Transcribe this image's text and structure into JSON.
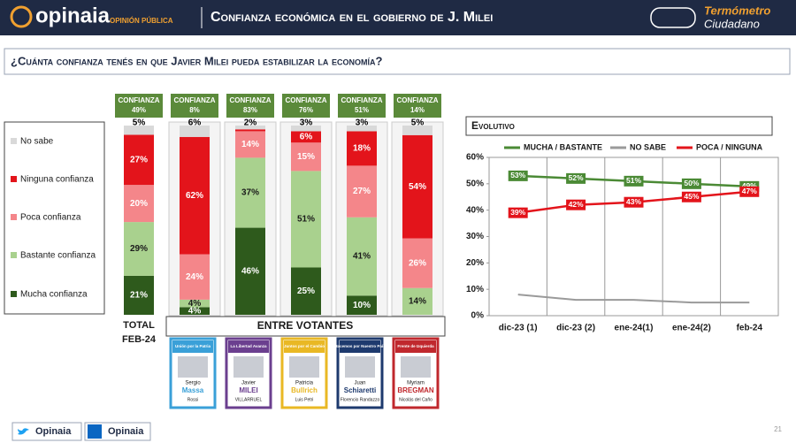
{
  "header": {
    "brand": "opinaia",
    "brand_tagline": "OPINIÓN PÚBLICA",
    "title": "Confianza económica en el gobierno de J. Milei",
    "logo_line1": "Termómetro",
    "logo_line2": "Ciudadano"
  },
  "question": "¿Cuánta confianza tenés en que Javier Milei pueda estabilizar la economía?",
  "chart_data": [
    {
      "type": "stacked_bar",
      "confidence": {
        "label": "CONFIANZA",
        "color": "#5b8a3a",
        "values": [
          49,
          8,
          83,
          76,
          51,
          14
        ],
        "value_labels": [
          "49%",
          "8%",
          "83%",
          "76%",
          "51%",
          "14%"
        ]
      },
      "total_label": "TOTAL",
      "total_date": "FEB-24",
      "group_label": "ENTRE VOTANTES",
      "ballots": [
        {
          "party": "Unión por la Patria",
          "first": "Sergio",
          "last": "Massa",
          "mate": "Rossi",
          "color": "#3aa0d8"
        },
        {
          "party": "La Libertad Avanza",
          "first": "Javier",
          "last": "MILEI",
          "mate": "VILLARRUEL",
          "color": "#6b3f8f"
        },
        {
          "party": "Juntos por el Cambio",
          "first": "Patricia",
          "last": "Bullrich",
          "mate": "Luis Petri",
          "color": "#e9b824"
        },
        {
          "party": "Hacemos por Nuestro País",
          "first": "Juan",
          "last": "Schiaretti",
          "mate": "Florencio Randazzo",
          "color": "#1e3a6e"
        },
        {
          "party": "Frente de Izquierda",
          "first": "Myriam",
          "last": "BREGMAN",
          "mate": "Nicolás del Caño",
          "color": "#c0282d"
        }
      ],
      "series": [
        {
          "name": "No sabe",
          "color": "#d9d9d9",
          "label_color": "#000000",
          "values": [
            5,
            6,
            2,
            3,
            3,
            5
          ],
          "value_labels": [
            "5%",
            "6%",
            "2%",
            "3%",
            "3%",
            "5%"
          ]
        },
        {
          "name": "Ninguna confianza",
          "color": "#e3141b",
          "label_color": "#ffffff",
          "values": [
            27,
            62,
            1,
            6,
            18,
            54
          ],
          "value_labels": [
            "27%",
            "62%",
            null,
            "6%",
            "18%",
            "54%"
          ]
        },
        {
          "name": "Poca confianza",
          "color": "#f4868a",
          "label_color": "#ffffff",
          "values": [
            20,
            24,
            14,
            15,
            27,
            26
          ],
          "value_labels": [
            "20%",
            "24%",
            "14%",
            "15%",
            "27%",
            "26%"
          ]
        },
        {
          "name": "Bastante confianza",
          "color": "#a9d18e",
          "label_color": "#1a1a1a",
          "values": [
            29,
            4,
            37,
            51,
            41,
            14
          ],
          "value_labels": [
            "29%",
            "4%",
            "37%",
            "51%",
            "41%",
            "14%"
          ]
        },
        {
          "name": "Mucha confianza",
          "color": "#2e5a1c",
          "label_color": "#ffffff",
          "values": [
            21,
            4,
            46,
            25,
            10,
            0
          ],
          "value_labels": [
            "21%",
            "4%",
            "46%",
            "25%",
            "10%",
            "0"
          ]
        }
      ]
    },
    {
      "type": "line",
      "title": "Evolutivo",
      "categories": [
        "dic-23 (1)",
        "dic-23 (2)",
        "ene-24(1)",
        "ene-24(2)",
        "feb-24"
      ],
      "ylim": [
        0,
        60
      ],
      "yticks": [
        {
          "value": 0,
          "label": "0%"
        },
        {
          "value": 10,
          "label": "10%"
        },
        {
          "value": 20,
          "label": "20%"
        },
        {
          "value": 30,
          "label": "30%"
        },
        {
          "value": 40,
          "label": "40%"
        },
        {
          "value": 50,
          "label": "50%"
        },
        {
          "value": 60,
          "label": "60%"
        }
      ],
      "series": [
        {
          "name": "MUCHA / BASTANTE",
          "color": "#4b8a35",
          "values": [
            53,
            52,
            51,
            50,
            49
          ],
          "value_labels": [
            "53%",
            "52%",
            "51%",
            "50%",
            "49%"
          ]
        },
        {
          "name": "NO SABE",
          "color": "#9a9a9a",
          "values": [
            8,
            6,
            6,
            5,
            5
          ]
        },
        {
          "name": "POCA / NINGUNA",
          "color": "#e3141b",
          "values": [
            39,
            42,
            43,
            45,
            47
          ],
          "value_labels": [
            "39%",
            "42%",
            "43%",
            "45%",
            "47%"
          ]
        }
      ]
    }
  ],
  "footer": {
    "twitter": "Opinaia",
    "linkedin": "Opinaia",
    "page": "21"
  }
}
